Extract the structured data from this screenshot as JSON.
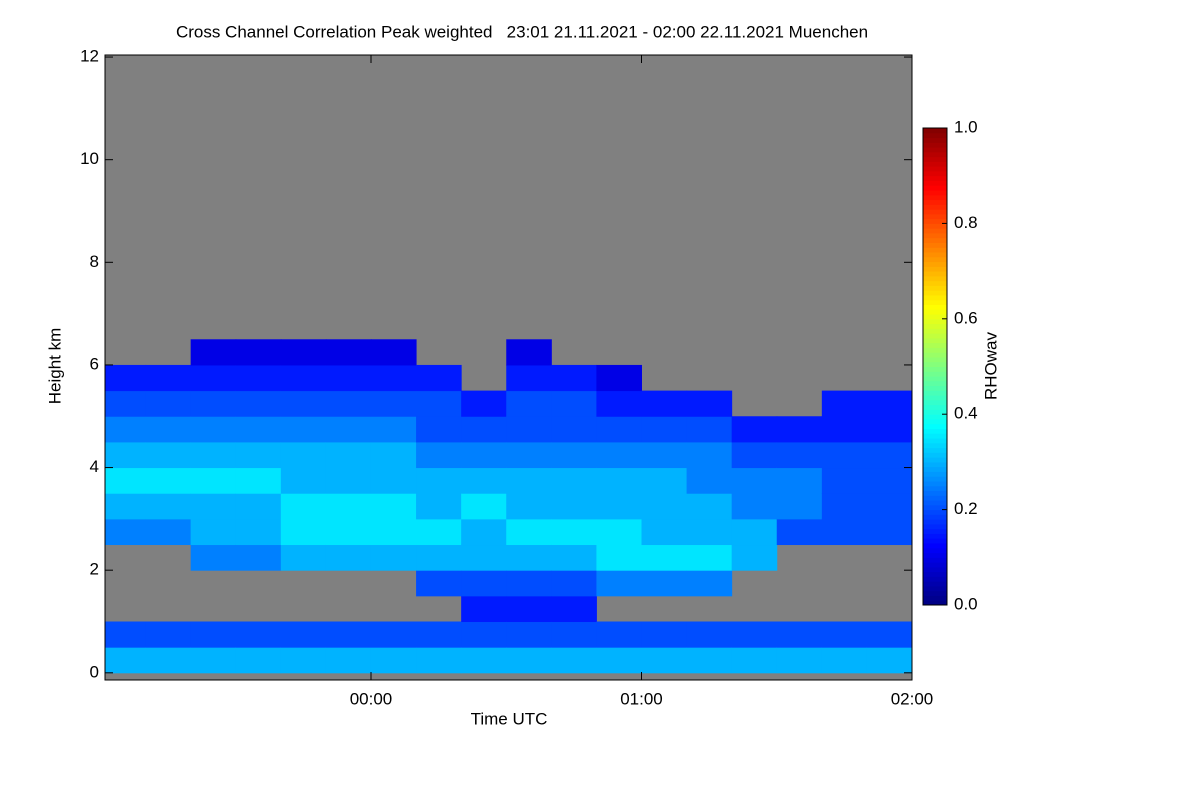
{
  "chart_data": {
    "type": "heatmap",
    "title": "Cross Channel Correlation Peak weighted   23:01 21.11.2021 - 02:00 22.11.2021 Muenchen",
    "x_label": "Time UTC",
    "y_label": "Height km",
    "colorbar_label": "RHOwav",
    "colormap": "jet",
    "missing_color": "#808080",
    "xlim": [
      1,
      180
    ],
    "xticks": [
      {
        "value": 60,
        "label": "00:00"
      },
      {
        "value": 120,
        "label": "01:00"
      },
      {
        "value": 180,
        "label": "02:00"
      }
    ],
    "ylim": [
      -0.14,
      12.04
    ],
    "yticks": [
      0,
      2,
      4,
      6,
      8,
      10,
      12
    ],
    "clim": [
      0,
      1
    ],
    "cticks": [
      {
        "value": 0,
        "label": "0.0"
      },
      {
        "value": 0.2,
        "label": "0.2"
      },
      {
        "value": 0.4,
        "label": "0.4"
      },
      {
        "value": 0.6,
        "label": "0.6"
      },
      {
        "value": 0.8,
        "label": "0.8"
      },
      {
        "value": 1,
        "label": "1.0"
      }
    ],
    "x": [
      5,
      15,
      25,
      35,
      45,
      55,
      65,
      75,
      85,
      95,
      105,
      115,
      125,
      135,
      145,
      155,
      165,
      175
    ],
    "y": [
      0.25,
      0.75,
      1.25,
      1.75,
      2.25,
      2.75,
      3.25,
      3.75,
      4.25,
      4.75,
      5.25,
      5.75,
      6.25
    ],
    "z": [
      [
        0.3,
        0.2,
        null,
        null,
        null,
        0.25,
        0.3,
        0.35,
        0.3,
        0.25,
        0.2,
        0.15,
        null
      ],
      [
        0.3,
        0.2,
        null,
        null,
        null,
        0.25,
        0.3,
        0.35,
        0.3,
        0.25,
        0.2,
        0.15,
        null
      ],
      [
        0.3,
        0.2,
        null,
        null,
        0.25,
        0.3,
        0.3,
        0.35,
        0.3,
        0.25,
        0.2,
        0.15,
        0.1
      ],
      [
        0.3,
        0.2,
        null,
        null,
        0.25,
        0.3,
        0.3,
        0.35,
        0.3,
        0.25,
        0.2,
        0.15,
        0.1
      ],
      [
        0.3,
        0.2,
        null,
        null,
        0.3,
        0.35,
        0.35,
        0.3,
        0.3,
        0.25,
        0.2,
        0.15,
        0.1
      ],
      [
        0.3,
        0.2,
        null,
        null,
        0.3,
        0.35,
        0.35,
        0.3,
        0.3,
        0.25,
        0.2,
        0.15,
        0.1
      ],
      [
        0.3,
        0.2,
        null,
        null,
        0.3,
        0.35,
        0.35,
        0.3,
        0.3,
        0.25,
        0.2,
        0.15,
        0.1
      ],
      [
        0.3,
        0.2,
        null,
        0.2,
        0.3,
        0.35,
        0.3,
        0.3,
        0.25,
        0.2,
        0.2,
        0.15,
        null
      ],
      [
        0.3,
        0.2,
        0.15,
        0.2,
        0.3,
        0.3,
        0.35,
        0.3,
        0.25,
        0.2,
        0.15,
        null,
        null
      ],
      [
        0.3,
        0.2,
        0.15,
        0.2,
        0.3,
        0.35,
        0.3,
        0.3,
        0.25,
        0.2,
        0.2,
        0.15,
        0.1
      ],
      [
        0.3,
        0.2,
        0.15,
        0.2,
        0.3,
        0.35,
        0.3,
        0.3,
        0.25,
        0.2,
        0.2,
        0.15,
        null
      ],
      [
        0.3,
        0.2,
        null,
        0.25,
        0.35,
        0.35,
        0.3,
        0.3,
        0.25,
        0.2,
        0.15,
        0.1,
        null
      ],
      [
        0.3,
        0.2,
        null,
        0.25,
        0.35,
        0.3,
        0.3,
        0.3,
        0.25,
        0.2,
        0.15,
        null,
        null
      ],
      [
        0.3,
        0.2,
        null,
        0.25,
        0.35,
        0.3,
        0.3,
        0.25,
        0.25,
        0.2,
        0.15,
        null,
        null
      ],
      [
        0.3,
        0.2,
        null,
        null,
        0.3,
        0.3,
        0.25,
        0.25,
        0.2,
        0.15,
        null,
        null,
        null
      ],
      [
        0.3,
        0.2,
        null,
        null,
        null,
        0.2,
        0.25,
        0.25,
        0.2,
        0.15,
        null,
        null,
        null
      ],
      [
        0.3,
        0.2,
        null,
        null,
        null,
        0.2,
        0.2,
        0.2,
        0.2,
        0.15,
        0.15,
        null,
        null
      ],
      [
        0.3,
        0.2,
        null,
        null,
        null,
        0.2,
        0.2,
        0.2,
        0.2,
        0.15,
        0.15,
        null,
        null
      ]
    ]
  }
}
